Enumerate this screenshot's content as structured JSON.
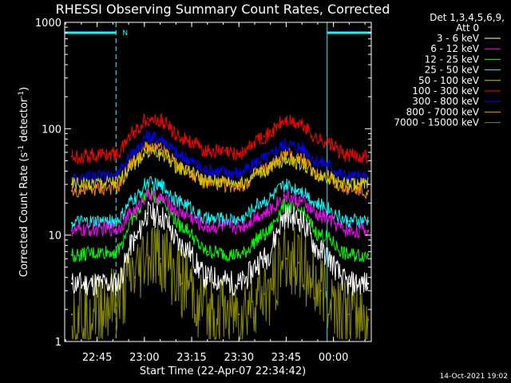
{
  "chart_data": {
    "type": "line",
    "title": "RHESSI Observing Summary Count Rates, Corrected",
    "ylabel": "Corrected Count Rate (s",
    "ylabel_sup1": "-1",
    "ylabel_mid": " detector",
    "ylabel_sup2": "-1",
    "ylabel_end": ")",
    "xlabel": "Start Time (22-Apr-07 22:34:42)",
    "yscale": "log",
    "ylim": [
      1,
      1000
    ],
    "xlim": [
      "22:34:42",
      "00:12"
    ],
    "x_ticks": [
      "22:45",
      "23:00",
      "23:15",
      "23:30",
      "23:45",
      "00:00"
    ],
    "y_ticks": [
      "1",
      "10",
      "100",
      "1000"
    ],
    "legend_header": [
      "Det 1,3,4,5,6,9,",
      "Att 0"
    ],
    "legend_placement": "right",
    "timestamp": "14-Oct-2021 19:02",
    "night_marker_label": "N",
    "night_intervals": [
      [
        "22:34:42",
        "22:51"
      ],
      [
        "23:58",
        "00:12"
      ]
    ],
    "series": [
      {
        "name": "3 - 6 keV",
        "color": "#ffffff",
        "x": [
          "22:37",
          "22:51",
          "22:57",
          "23:01",
          "23:05",
          "23:12",
          "23:20",
          "23:30",
          "23:38",
          "23:45",
          "23:49",
          "23:56",
          "00:05",
          "00:11"
        ],
        "y": [
          3.5,
          3.5,
          9,
          16,
          15,
          8,
          4,
          3.5,
          6,
          15,
          14,
          7,
          3.5,
          3.5
        ]
      },
      {
        "name": "6 - 12 keV",
        "color": "#ff00ff",
        "x": [
          "22:37",
          "22:51",
          "22:57",
          "23:01",
          "23:05",
          "23:12",
          "23:20",
          "23:30",
          "23:38",
          "23:45",
          "23:49",
          "23:56",
          "00:05",
          "00:11"
        ],
        "y": [
          11,
          11.5,
          17,
          24,
          22,
          16,
          12,
          12,
          16,
          23,
          21,
          15,
          11,
          11
        ]
      },
      {
        "name": "12 - 25 keV",
        "color": "#00ff00",
        "x": [
          "22:37",
          "22:51",
          "22:57",
          "23:01",
          "23:05",
          "23:12",
          "23:20",
          "23:30",
          "23:38",
          "23:45",
          "23:49",
          "23:56",
          "00:05",
          "00:11"
        ],
        "y": [
          6.5,
          7,
          15,
          25,
          22,
          12,
          7,
          6.5,
          10,
          19,
          17,
          10,
          6.5,
          6.5
        ]
      },
      {
        "name": "25 - 50 keV",
        "color": "#00ffff",
        "x": [
          "22:37",
          "22:51",
          "22:57",
          "23:01",
          "23:05",
          "23:12",
          "23:20",
          "23:30",
          "23:38",
          "23:45",
          "23:49",
          "23:56",
          "00:05",
          "00:11"
        ],
        "y": [
          13,
          13.5,
          22,
          31,
          29,
          20,
          14,
          14,
          21,
          29,
          27,
          19,
          13.5,
          13.5
        ]
      },
      {
        "name": "50 - 100 keV",
        "color": "#cccc00",
        "x": [
          "22:37",
          "22:51",
          "22:57",
          "23:01",
          "23:05",
          "23:12",
          "23:20",
          "23:30",
          "23:38",
          "23:45",
          "23:49",
          "23:56",
          "00:05",
          "00:11"
        ],
        "y": [
          30,
          31,
          48,
          62,
          58,
          42,
          32,
          31,
          40,
          52,
          48,
          36,
          30,
          30
        ]
      },
      {
        "name": "100 - 300 keV",
        "color": "#ff0000",
        "x": [
          "22:37",
          "22:51",
          "22:57",
          "23:01",
          "23:05",
          "23:12",
          "23:20",
          "23:30",
          "23:38",
          "23:45",
          "23:49",
          "23:56",
          "00:05",
          "00:11"
        ],
        "y": [
          55,
          58,
          95,
          125,
          118,
          82,
          62,
          58,
          85,
          118,
          110,
          78,
          56,
          55
        ]
      },
      {
        "name": "300 - 800 keV",
        "color": "#0000ff",
        "x": [
          "22:37",
          "22:51",
          "22:57",
          "23:01",
          "23:05",
          "23:12",
          "23:20",
          "23:30",
          "23:38",
          "23:45",
          "23:49",
          "23:56",
          "00:05",
          "00:11"
        ],
        "y": [
          34,
          36,
          62,
          84,
          80,
          54,
          40,
          38,
          52,
          71,
          67,
          48,
          35,
          34
        ]
      },
      {
        "name": "800 - 7000 keV",
        "color": "#ff8800",
        "x": [
          "22:37",
          "22:51",
          "22:57",
          "23:01",
          "23:05",
          "23:12",
          "23:20",
          "23:30",
          "23:38",
          "23:45",
          "23:49",
          "23:56",
          "00:05",
          "00:11"
        ],
        "y": [
          26,
          28,
          50,
          68,
          64,
          43,
          31,
          29,
          41,
          57,
          53,
          37,
          27,
          26
        ]
      },
      {
        "name": "7000 - 15000 keV",
        "color": "#888800",
        "x": [
          "22:37",
          "22:51",
          "22:57",
          "23:01",
          "23:05",
          "23:12",
          "23:20",
          "23:30",
          "23:38",
          "23:45",
          "23:49",
          "23:56",
          "00:05",
          "00:11"
        ],
        "y": [
          1.8,
          2.2,
          4,
          6.5,
          6,
          3.5,
          2,
          1.8,
          2.8,
          6,
          5.5,
          3,
          1.8,
          1.6
        ]
      }
    ]
  }
}
